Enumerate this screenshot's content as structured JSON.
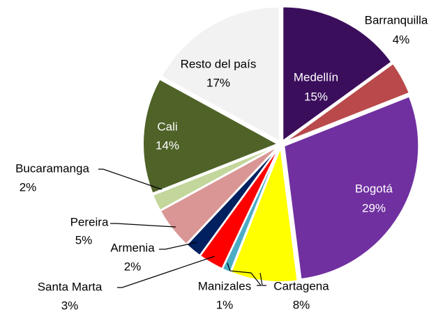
{
  "chart_data": {
    "type": "pie",
    "categories": [
      "Medellín",
      "Barranquilla",
      "Bogotá",
      "Cartagena",
      "Manizales",
      "Santa Marta",
      "Armenia",
      "Pereira",
      "Bucaramanga",
      "Cali",
      "Resto del país"
    ],
    "values": [
      15,
      4,
      29,
      8,
      1,
      3,
      2,
      5,
      2,
      14,
      17
    ],
    "value_labels": [
      "15%",
      "4%",
      "29%",
      "8%",
      "1%",
      "3%",
      "2%",
      "5%",
      "2%",
      "14%",
      "17%"
    ],
    "colors": [
      "#3b0e5c",
      "#b9494a",
      "#7030a0",
      "#ffff00",
      "#4bacc6",
      "#ff0000",
      "#002060",
      "#d99694",
      "#c3d69b",
      "#4f6228",
      "#f2f2f2"
    ]
  }
}
